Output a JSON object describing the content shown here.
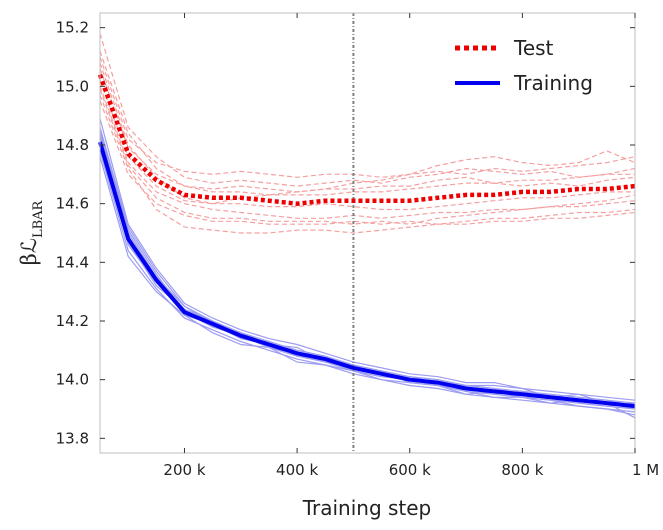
{
  "chart_data": {
    "type": "line",
    "xlabel": "Training step",
    "ylabel": "βℒ",
    "ylabel_subscript": "LBAR",
    "xlim": [
      50000,
      1000000
    ],
    "ylim": [
      13.75,
      15.25
    ],
    "x_ticks": [
      200000,
      400000,
      600000,
      800000,
      1000000
    ],
    "x_tick_labels": [
      "200 k",
      "400 k",
      "600 k",
      "800 k",
      "1 M"
    ],
    "y_ticks": [
      13.8,
      14.0,
      14.2,
      14.4,
      14.6,
      14.8,
      15.0,
      15.2
    ],
    "y_tick_labels": [
      "13.8",
      "14.0",
      "14.2",
      "14.4",
      "14.6",
      "14.8",
      "15.0",
      "15.2"
    ],
    "vline_x": 500000,
    "legend": {
      "position": "top-right",
      "entries": [
        "Test",
        "Training"
      ]
    },
    "colors": {
      "test": "#ee0000",
      "training": "#0000ee",
      "test_light": "#f5a0a0",
      "training_light": "#9d9df2",
      "vline": "#808080"
    },
    "x": [
      50000,
      100000,
      150000,
      200000,
      250000,
      300000,
      350000,
      400000,
      450000,
      500000,
      550000,
      600000,
      650000,
      700000,
      750000,
      800000,
      850000,
      900000,
      950000,
      1000000
    ],
    "series": [
      {
        "name": "Test",
        "style": "dotted",
        "values": [
          15.04,
          14.77,
          14.68,
          14.63,
          14.62,
          14.62,
          14.61,
          14.6,
          14.61,
          14.61,
          14.61,
          14.61,
          14.62,
          14.63,
          14.63,
          14.64,
          14.64,
          14.65,
          14.65,
          14.66
        ]
      },
      {
        "name": "Training",
        "style": "solid",
        "values": [
          14.81,
          14.48,
          14.34,
          14.23,
          14.19,
          14.15,
          14.12,
          14.09,
          14.07,
          14.04,
          14.02,
          14.0,
          13.99,
          13.97,
          13.96,
          13.95,
          13.94,
          13.93,
          13.92,
          13.91
        ]
      }
    ],
    "test_runs": [
      [
        15.1,
        14.82,
        14.74,
        14.71,
        14.7,
        14.71,
        14.7,
        14.69,
        14.7,
        14.7,
        14.69,
        14.7,
        14.71,
        14.7,
        14.72,
        14.71,
        14.72,
        14.73,
        14.74,
        14.76
      ],
      [
        15.0,
        14.74,
        14.64,
        14.6,
        14.58,
        14.57,
        14.56,
        14.55,
        14.55,
        14.56,
        14.55,
        14.56,
        14.57,
        14.57,
        14.58,
        14.58,
        14.59,
        14.59,
        14.6,
        14.61
      ],
      [
        15.18,
        14.86,
        14.76,
        14.69,
        14.67,
        14.68,
        14.67,
        14.66,
        14.67,
        14.68,
        14.67,
        14.69,
        14.7,
        14.72,
        14.71,
        14.7,
        14.71,
        14.69,
        14.7,
        14.72
      ],
      [
        14.95,
        14.7,
        14.6,
        14.56,
        14.54,
        14.54,
        14.53,
        14.53,
        14.53,
        14.54,
        14.53,
        14.54,
        14.53,
        14.54,
        14.55,
        14.55,
        14.56,
        14.57,
        14.57,
        14.58
      ],
      [
        15.06,
        14.79,
        14.7,
        14.66,
        14.65,
        14.66,
        14.65,
        14.64,
        14.65,
        14.65,
        14.66,
        14.66,
        14.68,
        14.69,
        14.67,
        14.66,
        14.67,
        14.66,
        14.68,
        14.69
      ],
      [
        14.99,
        14.73,
        14.62,
        14.57,
        14.55,
        14.55,
        14.54,
        14.54,
        14.54,
        14.53,
        14.54,
        14.53,
        14.55,
        14.56,
        14.57,
        14.58,
        14.59,
        14.6,
        14.61,
        14.63
      ],
      [
        15.08,
        14.8,
        14.69,
        14.62,
        14.6,
        14.6,
        14.59,
        14.59,
        14.6,
        14.59,
        14.58,
        14.58,
        14.59,
        14.6,
        14.61,
        14.62,
        14.62,
        14.63,
        14.64,
        14.64
      ],
      [
        15.02,
        14.76,
        14.66,
        14.61,
        14.6,
        14.62,
        14.63,
        14.64,
        14.65,
        14.67,
        14.68,
        14.7,
        14.73,
        14.75,
        14.76,
        14.74,
        14.73,
        14.74,
        14.78,
        14.74
      ],
      [
        14.97,
        14.72,
        14.58,
        14.52,
        14.51,
        14.5,
        14.5,
        14.51,
        14.51,
        14.5,
        14.51,
        14.52,
        14.53,
        14.53,
        14.54,
        14.54,
        14.55,
        14.55,
        14.56,
        14.57
      ],
      [
        15.12,
        14.84,
        14.72,
        14.66,
        14.64,
        14.64,
        14.63,
        14.63,
        14.63,
        14.64,
        14.64,
        14.65,
        14.66,
        14.67,
        14.67,
        14.68,
        14.68,
        14.69,
        14.7,
        14.7
      ]
    ],
    "training_runs": [
      [
        14.86,
        14.52,
        14.37,
        14.25,
        14.2,
        14.16,
        14.13,
        14.1,
        14.08,
        14.05,
        14.03,
        14.01,
        14.0,
        13.98,
        13.97,
        13.96,
        13.95,
        13.94,
        13.93,
        13.92
      ],
      [
        14.78,
        14.44,
        14.31,
        14.21,
        14.17,
        14.13,
        14.1,
        14.07,
        14.05,
        14.02,
        14.0,
        13.98,
        13.97,
        13.95,
        13.94,
        13.93,
        13.92,
        13.91,
        13.9,
        13.89
      ],
      [
        14.84,
        14.5,
        14.35,
        14.24,
        14.2,
        14.14,
        14.12,
        14.11,
        14.06,
        14.04,
        14.03,
        14.0,
        13.99,
        13.98,
        13.98,
        13.97,
        13.94,
        13.95,
        13.92,
        13.9
      ],
      [
        14.76,
        14.42,
        14.3,
        14.22,
        14.16,
        14.12,
        14.11,
        14.06,
        14.05,
        14.03,
        14.0,
        13.99,
        13.98,
        13.96,
        13.94,
        13.94,
        13.93,
        13.91,
        13.9,
        13.88
      ],
      [
        14.89,
        14.53,
        14.38,
        14.26,
        14.21,
        14.17,
        14.14,
        14.12,
        14.09,
        14.06,
        14.04,
        14.02,
        14.01,
        13.99,
        13.99,
        13.97,
        13.96,
        13.95,
        13.94,
        13.93
      ],
      [
        14.8,
        14.46,
        14.33,
        14.23,
        14.18,
        14.15,
        14.11,
        14.08,
        14.07,
        14.03,
        14.01,
        14.0,
        13.98,
        13.95,
        13.96,
        13.94,
        13.93,
        13.92,
        13.91,
        13.9
      ],
      [
        14.83,
        14.49,
        14.34,
        14.22,
        14.19,
        14.14,
        14.13,
        14.09,
        14.06,
        14.05,
        14.02,
        14.01,
        13.99,
        13.97,
        13.95,
        13.96,
        13.93,
        13.93,
        13.92,
        13.87
      ],
      [
        14.79,
        14.47,
        14.32,
        14.24,
        14.18,
        14.16,
        14.12,
        14.1,
        14.08,
        14.04,
        14.03,
        13.99,
        13.98,
        13.97,
        13.96,
        13.94,
        13.94,
        13.92,
        13.91,
        13.92
      ],
      [
        14.85,
        14.51,
        14.36,
        14.23,
        14.2,
        14.15,
        14.11,
        14.09,
        14.07,
        14.05,
        14.02,
        14.01,
        14.0,
        13.98,
        13.97,
        13.95,
        13.95,
        13.94,
        13.93,
        13.91
      ],
      [
        14.82,
        14.48,
        14.35,
        14.25,
        14.19,
        14.14,
        14.13,
        14.08,
        14.06,
        14.03,
        14.01,
        14.0,
        13.99,
        13.96,
        13.95,
        13.94,
        13.92,
        13.93,
        13.92,
        13.9
      ]
    ]
  }
}
